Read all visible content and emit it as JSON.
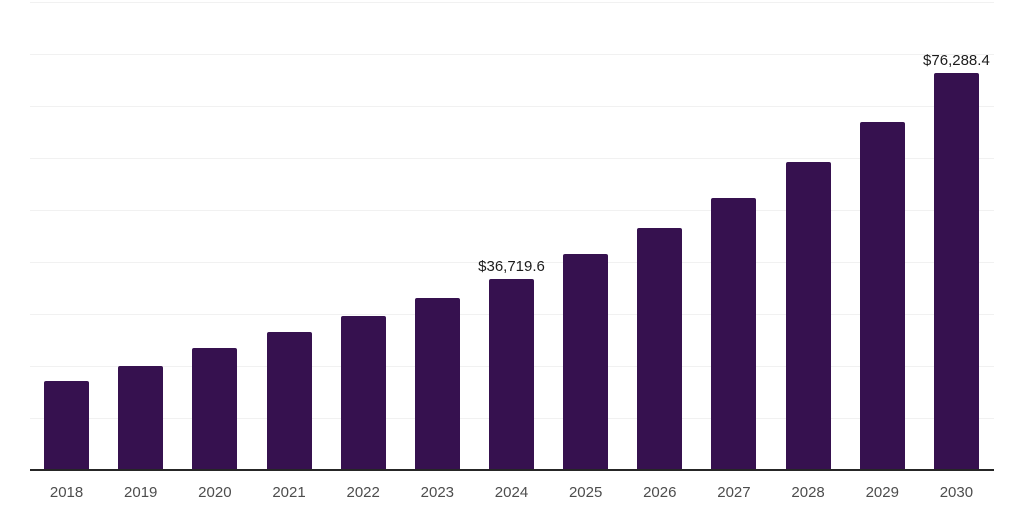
{
  "chart_data": {
    "type": "bar",
    "title": "",
    "xlabel": "",
    "ylabel": "",
    "categories": [
      "2018",
      "2019",
      "2020",
      "2021",
      "2022",
      "2023",
      "2024",
      "2025",
      "2026",
      "2027",
      "2028",
      "2029",
      "2030"
    ],
    "values": [
      17000,
      20000,
      23400,
      26400,
      29500,
      33000,
      36719.6,
      41500,
      46400,
      52200,
      59100,
      66800,
      76288.4
    ],
    "data_labels": {
      "2024": "$36,719.6",
      "2030": "$76,288.4"
    },
    "ylim": [
      0,
      90000
    ],
    "gridline_step": 10000,
    "grid": "horizontal",
    "y_axis_tick_labels": "none",
    "legend": "none",
    "style": {
      "bar_color": "#36114f",
      "grid_color": "#f1f1f1",
      "axis_color": "#262626",
      "tick_label_color": "#4d4d4d",
      "data_label_color": "#1c1c1c",
      "background_color": "#ffffff"
    }
  }
}
